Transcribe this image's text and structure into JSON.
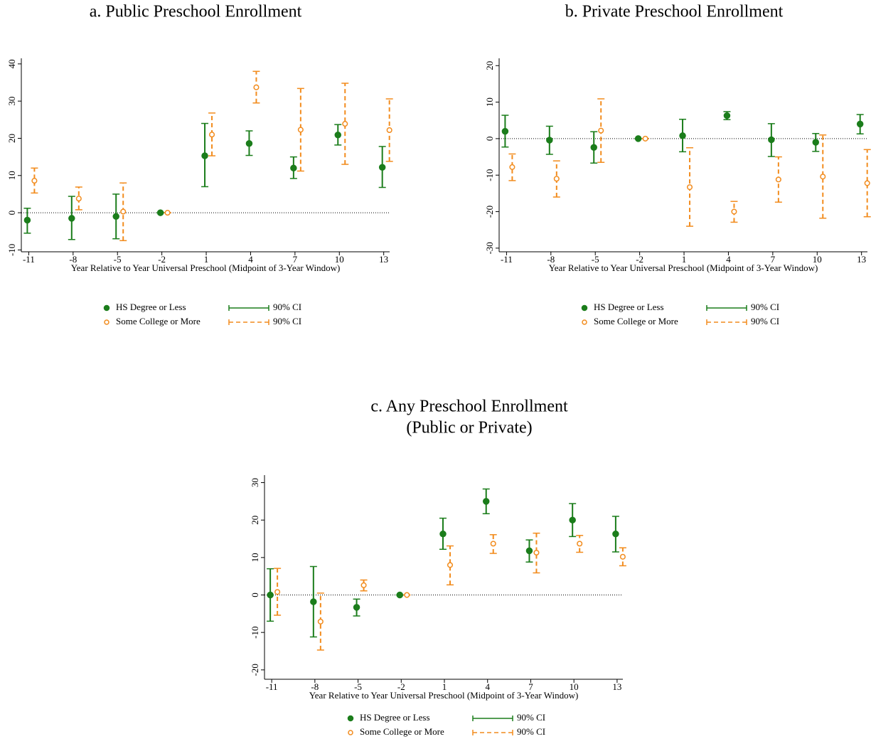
{
  "chart_data": [
    {
      "type": "errorbar",
      "title": "a. Public Preschool Enrollment",
      "xlabel": "Year Relative to Year Universal Preschool (Midpoint of 3-Year Window)",
      "x": [
        -11,
        -8,
        -5,
        -2,
        1,
        4,
        7,
        10,
        13
      ],
      "xlim": [
        -11.5,
        13.4
      ],
      "ylim": [
        -10.5,
        41.5
      ],
      "yticks": [
        -10,
        0,
        10,
        20,
        30,
        40
      ],
      "series": [
        {
          "name": "HS Degree or Less",
          "ci_label": "90% CI",
          "color": "#1b7d1b",
          "marker": "filled",
          "line_style": "solid",
          "values": [
            -2,
            -1.5,
            -1,
            0,
            15.3,
            18.6,
            12,
            20.9,
            12.2
          ],
          "lower": [
            -5.5,
            -7.2,
            -7,
            0,
            7,
            15.4,
            9.2,
            18.2,
            6.8
          ],
          "upper": [
            1.2,
            4.4,
            5,
            0,
            24,
            22,
            15,
            23.7,
            17.8
          ]
        },
        {
          "name": "Some College or More",
          "ci_label": "90% CI",
          "color": "#f28c1e",
          "marker": "hollow",
          "line_style": "dashed",
          "values": [
            8.6,
            3.8,
            0.3,
            0,
            21,
            33.7,
            22.3,
            23.9,
            22.2
          ],
          "lower": [
            5.3,
            0.8,
            -7.5,
            0,
            15.3,
            29.5,
            11.2,
            13,
            13.8
          ],
          "upper": [
            12,
            6.9,
            8,
            0,
            26.8,
            38,
            33.4,
            34.8,
            30.6
          ]
        }
      ]
    },
    {
      "type": "errorbar",
      "title": "b. Private Preschool Enrollment",
      "xlabel": "Year Relative to Year Universal Preschool (Midpoint of 3-Year Window)",
      "x": [
        -11,
        -8,
        -5,
        -2,
        1,
        4,
        7,
        10,
        13
      ],
      "xlim": [
        -11.5,
        13.4
      ],
      "ylim": [
        -31,
        22
      ],
      "yticks": [
        -30,
        -20,
        -10,
        0,
        10,
        20
      ],
      "series": [
        {
          "name": "HS Degree or Less",
          "ci_label": "90% CI",
          "color": "#1b7d1b",
          "marker": "filled",
          "line_style": "solid",
          "values": [
            2,
            -0.4,
            -2.4,
            0,
            0.8,
            6.3,
            -0.3,
            -1,
            4
          ],
          "lower": [
            -2.3,
            -4.3,
            -6.7,
            0,
            -3.6,
            5.2,
            -4.9,
            -3.5,
            1.3
          ],
          "upper": [
            6.4,
            3.4,
            1.9,
            0,
            5.3,
            7.4,
            4.1,
            1.4,
            6.6
          ]
        },
        {
          "name": "Some College or More",
          "ci_label": "90% CI",
          "color": "#f28c1e",
          "marker": "hollow",
          "line_style": "dashed",
          "values": [
            -7.8,
            -11,
            2.2,
            0,
            -13.3,
            -20,
            -11.2,
            -10.4,
            -12.2
          ],
          "lower": [
            -11.5,
            -16,
            -6.5,
            0,
            -24,
            -22.9,
            -17.4,
            -21.8,
            -21.4
          ],
          "upper": [
            -4.2,
            -6.1,
            10.9,
            0,
            -2.5,
            -17.2,
            -5,
            1,
            -3
          ]
        }
      ]
    },
    {
      "type": "errorbar",
      "title": "c. Any Preschool Enrollment",
      "subtitle": "(Public or Private)",
      "xlabel": "Year Relative to Year Universal Preschool (Midpoint of 3-Year Window)",
      "x": [
        -11,
        -8,
        -5,
        -2,
        1,
        4,
        7,
        10,
        13
      ],
      "xlim": [
        -11.5,
        13.4
      ],
      "ylim": [
        -22.5,
        32
      ],
      "yticks": [
        -20,
        -10,
        0,
        10,
        20,
        30
      ],
      "series": [
        {
          "name": "HS Degree or Less",
          "ci_label": "90% CI",
          "color": "#1b7d1b",
          "marker": "filled",
          "line_style": "solid",
          "values": [
            0,
            -1.8,
            -3.3,
            0,
            16.3,
            25,
            11.8,
            20,
            16.3
          ],
          "lower": [
            -7,
            -11.2,
            -5.6,
            0,
            12.2,
            21.7,
            8.8,
            15.6,
            11.5
          ],
          "upper": [
            7,
            7.6,
            -1.1,
            0,
            20.5,
            28.3,
            14.7,
            24.4,
            21
          ]
        },
        {
          "name": "Some College or More",
          "ci_label": "90% CI",
          "color": "#f28c1e",
          "marker": "hollow",
          "line_style": "dashed",
          "values": [
            0.8,
            -7.1,
            2.6,
            0,
            8,
            13.7,
            11.3,
            13.7,
            10.2
          ],
          "lower": [
            -5.4,
            -14.7,
            1.1,
            0,
            2.7,
            11.1,
            5.9,
            11.4,
            7.8
          ],
          "upper": [
            7.1,
            0.5,
            4,
            0,
            13.1,
            16.1,
            16.5,
            15.9,
            12.6
          ]
        }
      ]
    }
  ]
}
